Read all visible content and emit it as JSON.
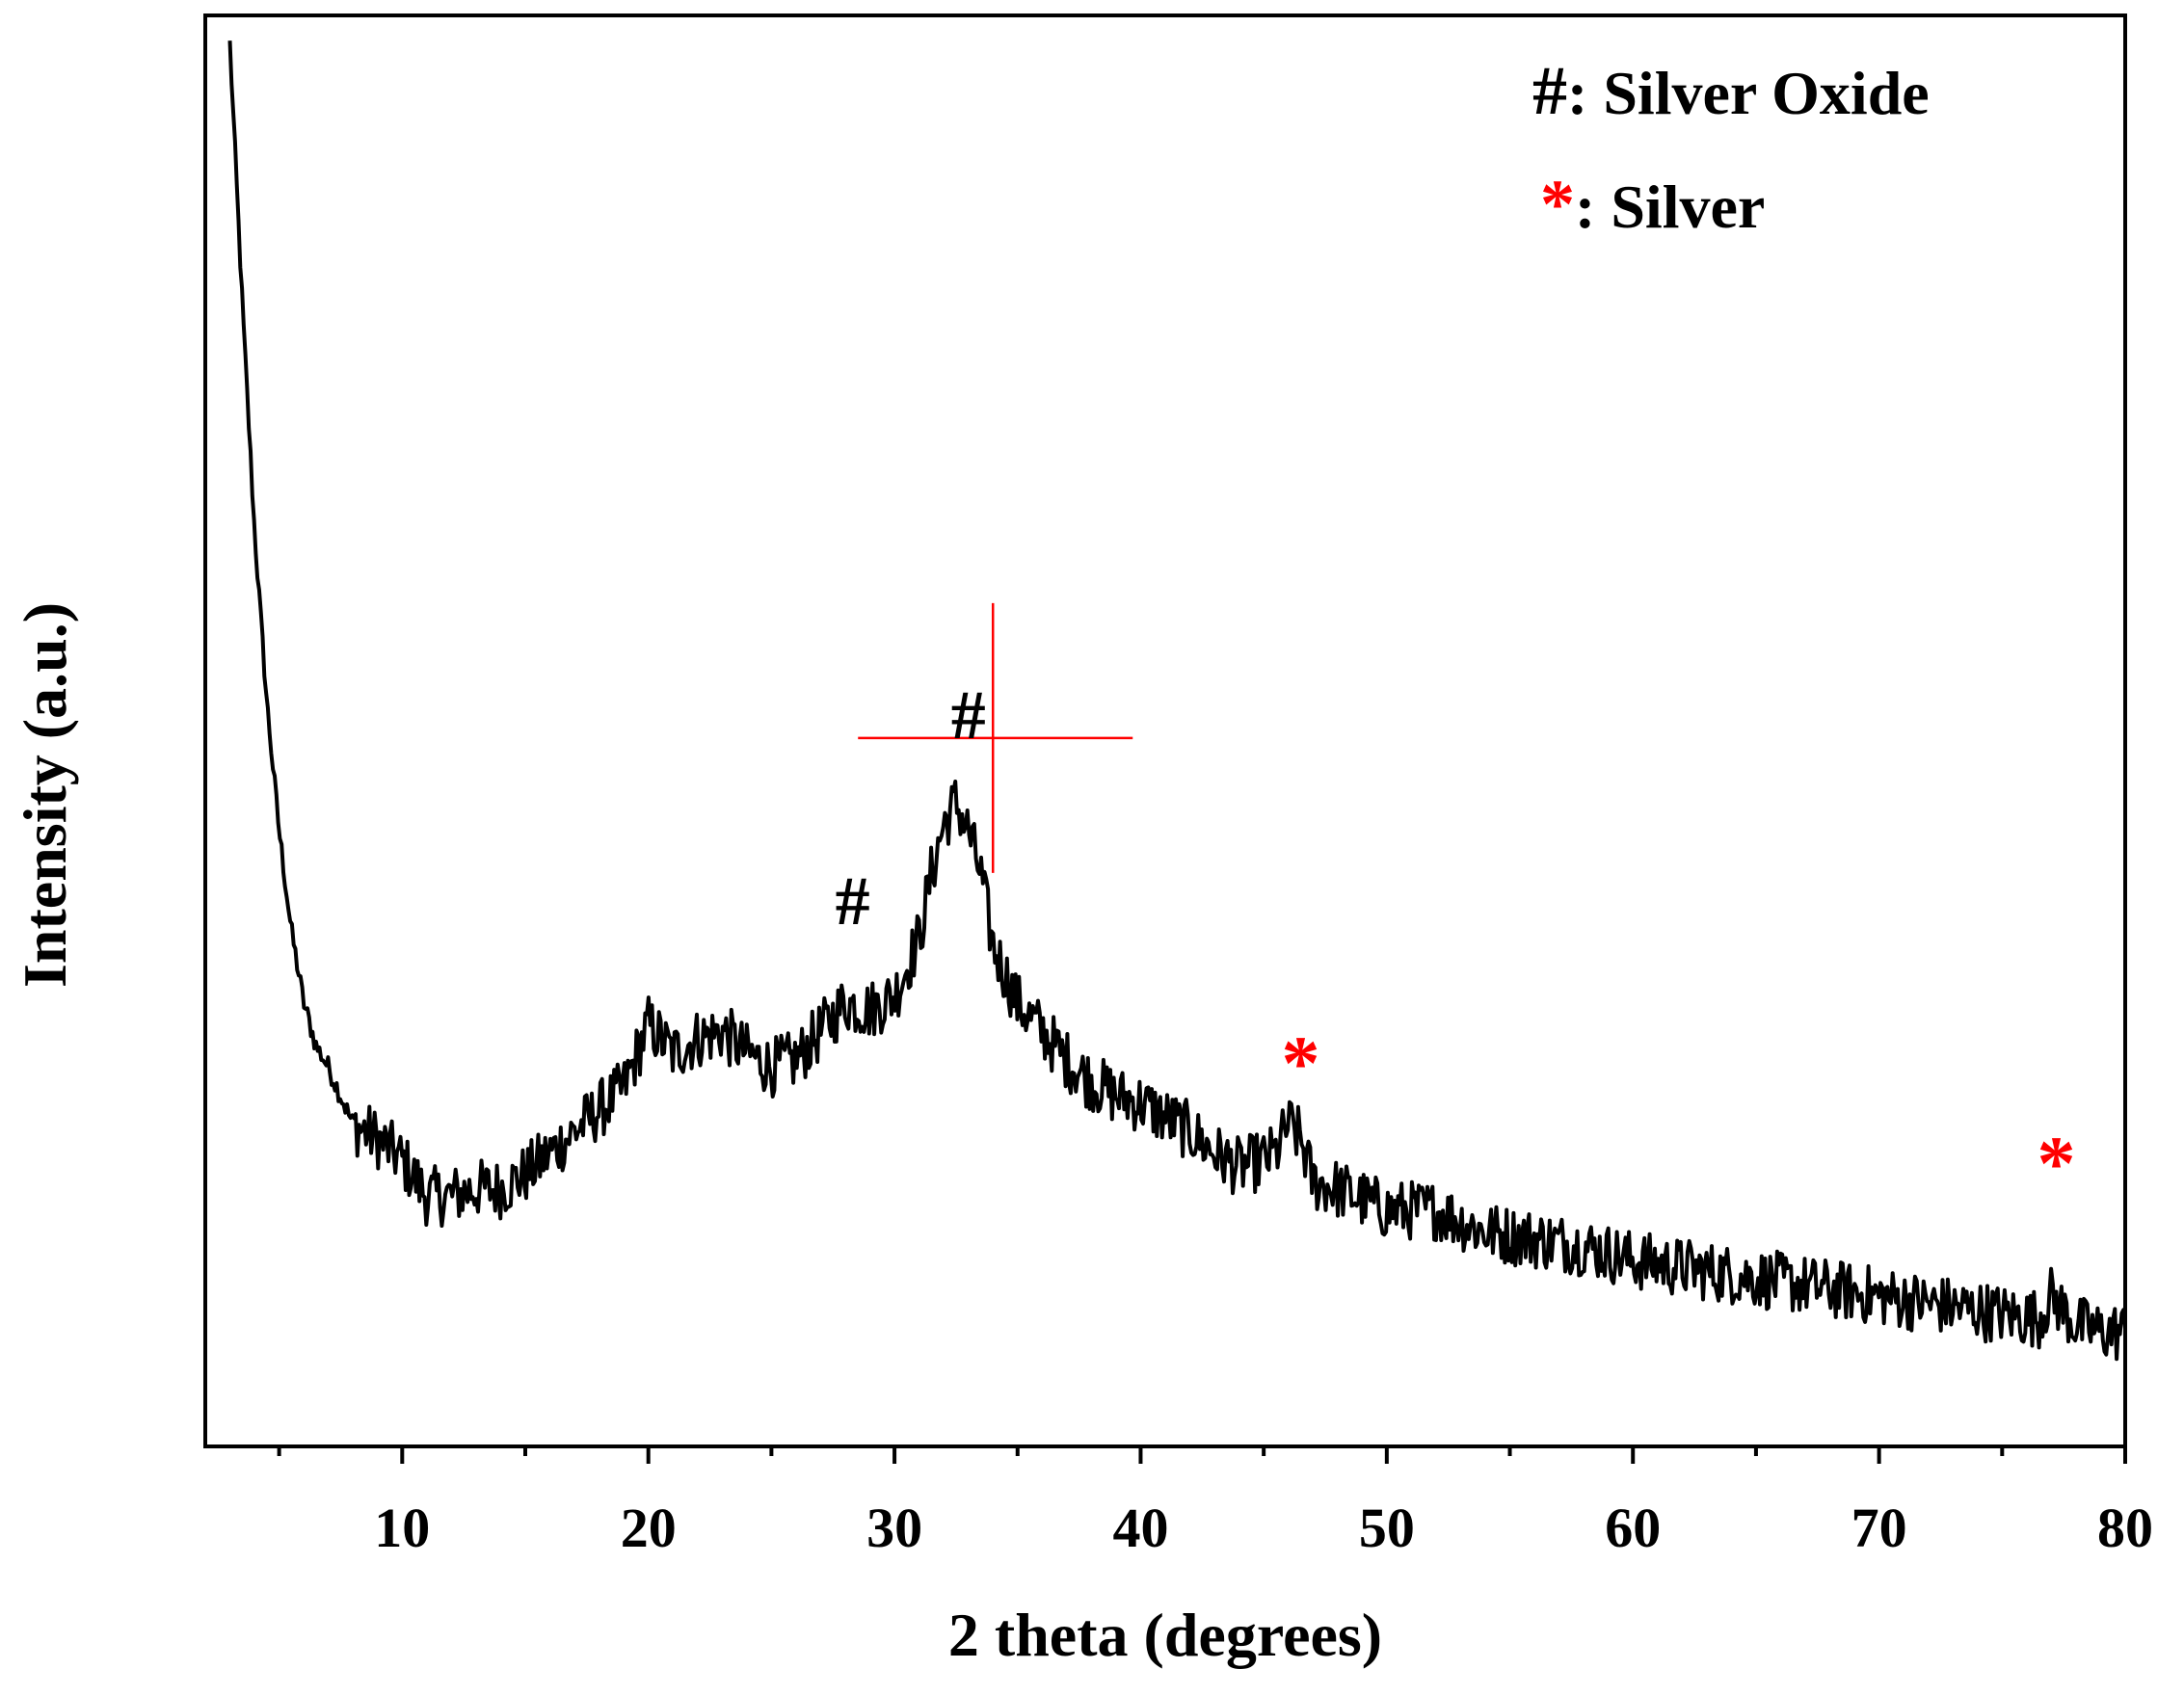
{
  "chart_data": {
    "type": "line",
    "title": "",
    "xlabel": "2 theta (degrees)",
    "ylabel": "Intensity (a.u.)",
    "xlim": [
      2,
      80
    ],
    "ylim": [
      0,
      100
    ],
    "x_ticks": [
      "10",
      "20",
      "30",
      "40",
      "50",
      "60",
      "70",
      "80"
    ],
    "x_tick_values": [
      10,
      20,
      30,
      40,
      50,
      60,
      70,
      80
    ],
    "y_ticks": [],
    "grid": false,
    "legend_position": "top-right",
    "legend": [
      {
        "symbol": "#",
        "separator": ": ",
        "label": "Silver Oxide",
        "color": "#000000"
      },
      {
        "symbol": "*",
        "separator": ": ",
        "label": "Silver",
        "color": "#ff0000"
      }
    ],
    "series": [
      {
        "color": "#000000",
        "x": [
          3.0,
          3.5,
          4.0,
          4.5,
          5.0,
          5.5,
          6.0,
          6.5,
          7.0,
          7.5,
          8.0,
          8.5,
          9.0,
          10.0,
          11.0,
          12.0,
          13.0,
          14.0,
          15.0,
          16.0,
          17.0,
          18.0,
          19.0,
          20.0,
          21.0,
          22.0,
          23.0,
          24.0,
          25.0,
          26.0,
          27.0,
          28.0,
          29.0,
          30.0,
          31.0,
          31.5,
          32.0,
          32.5,
          33.0,
          33.5,
          34.0,
          35.0,
          36.0,
          37.0,
          38.0,
          39.0,
          40.0,
          41.0,
          42.0,
          43.0,
          44.0,
          45.0,
          45.5,
          46.0,
          46.5,
          47.0,
          48.0,
          50.0,
          52.0,
          54.0,
          56.0,
          58.0,
          60.0,
          62.0,
          64.0,
          66.0,
          68.0,
          70.0,
          72.0,
          74.0,
          76.0,
          76.5,
          77.0,
          77.5,
          78.0,
          79.0,
          80.0
        ],
        "y": [
          98.0,
          80.0,
          64.0,
          52.0,
          43.0,
          36.0,
          31.0,
          28.0,
          26.5,
          24.5,
          22.5,
          22.0,
          21.5,
          20.0,
          17.5,
          17.5,
          18.0,
          18.0,
          19.0,
          20.5,
          22.0,
          23.5,
          25.0,
          29.5,
          27.5,
          28.5,
          29.0,
          27.5,
          26.5,
          27.0,
          29.0,
          31.0,
          30.5,
          31.5,
          35.5,
          40.0,
          43.5,
          45.0,
          43.0,
          40.0,
          35.0,
          31.0,
          29.0,
          27.0,
          25.5,
          24.5,
          24.0,
          23.0,
          22.0,
          20.5,
          19.5,
          20.0,
          20.5,
          22.5,
          21.5,
          18.5,
          18.0,
          16.5,
          16.5,
          15.0,
          14.5,
          14.0,
          13.0,
          12.5,
          12.0,
          11.5,
          11.0,
          10.5,
          10.0,
          9.5,
          9.0,
          9.0,
          10.5,
          9.5,
          8.5,
          8.0,
          8.0
        ]
      }
    ],
    "annotations": [
      {
        "text": "#",
        "x": 28.3,
        "y": 36.5,
        "color": "#000000"
      },
      {
        "text": "#",
        "x": 33.0,
        "y": 49.5,
        "color": "#000000"
      },
      {
        "text": "*",
        "x": 46.5,
        "y": 27.5,
        "color": "#ff0000"
      },
      {
        "text": "*",
        "x": 77.2,
        "y": 20.5,
        "color": "#ff0000"
      }
    ],
    "crosshair": {
      "x": 34.0,
      "y": 49.5,
      "color": "#ff0000"
    }
  }
}
